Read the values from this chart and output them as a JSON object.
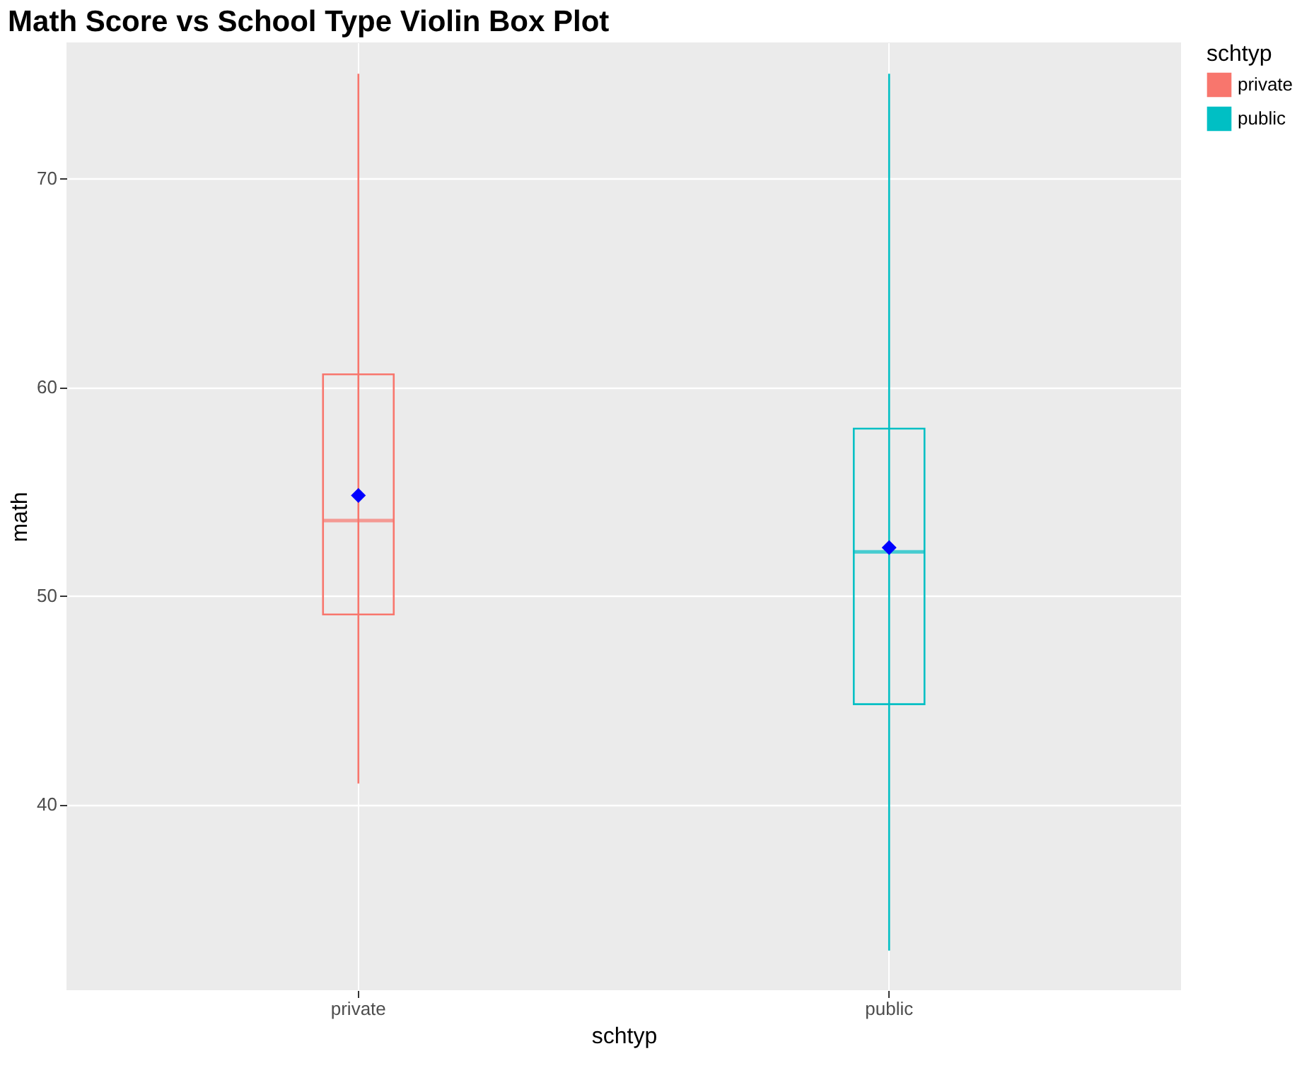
{
  "chart_data": {
    "type": "box",
    "title": "Math Score vs School Type Violin Box Plot",
    "xlabel": "schtyp",
    "ylabel": "math",
    "legend_title": "schtyp",
    "categories": [
      "private",
      "public"
    ],
    "series": [
      {
        "name": "private",
        "color": "#f8766d",
        "boxes": [
          {
            "low": 41,
            "q1": 49.1,
            "median": 53.6,
            "q3": 60.6,
            "high": 75,
            "mean": 54.8
          },
          null
        ]
      },
      {
        "name": "public",
        "color": "#00bfc4",
        "boxes": [
          null,
          {
            "low": 33,
            "q1": 44.8,
            "median": 52.1,
            "q3": 58,
            "high": 75,
            "mean": 52.3
          }
        ]
      }
    ],
    "ylim": [
      31.1,
      76.5
    ],
    "yticks": [
      40,
      50,
      60,
      70
    ],
    "grid": true,
    "legend": "right"
  }
}
